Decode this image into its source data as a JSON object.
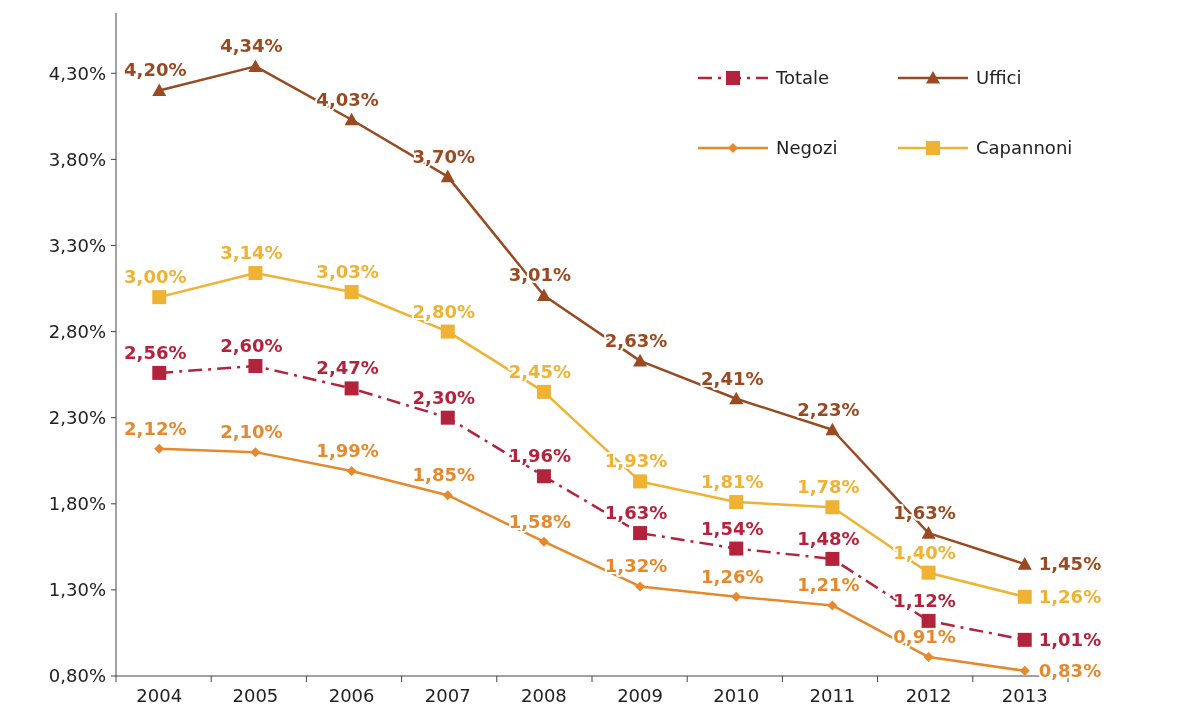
{
  "chart_data": {
    "type": "line",
    "categories": [
      "2004",
      "2005",
      "2006",
      "2007",
      "2008",
      "2009",
      "2010",
      "2011",
      "2012",
      "2013"
    ],
    "ylim": [
      0.8,
      4.65
    ],
    "yticks": [
      {
        "value": 0.8,
        "label": "0,80%"
      },
      {
        "value": 1.3,
        "label": "1,30%"
      },
      {
        "value": 1.8,
        "label": "1,80%"
      },
      {
        "value": 2.3,
        "label": "2,30%"
      },
      {
        "value": 2.8,
        "label": "2,80%"
      },
      {
        "value": 3.3,
        "label": "3,30%"
      },
      {
        "value": 3.8,
        "label": "3,80%"
      },
      {
        "value": 4.3,
        "label": "4,30%"
      }
    ],
    "grid": false,
    "legend": "top right",
    "series": [
      {
        "name": "Totale",
        "color": "#b3243c",
        "marker": "square",
        "line_style": "dashed",
        "values": [
          2.56,
          2.6,
          2.47,
          2.3,
          1.96,
          1.63,
          1.54,
          1.48,
          1.12,
          1.01
        ],
        "value_labels": [
          "2,56%",
          "2,60%",
          "2,47%",
          "2,30%",
          "1,96%",
          "1,63%",
          "1,54%",
          "1,48%",
          "1,12%",
          "1,01%"
        ]
      },
      {
        "name": "Uffici",
        "color": "#9a4a22",
        "marker": "triangle",
        "line_style": "solid",
        "values": [
          4.2,
          4.34,
          4.03,
          3.7,
          3.01,
          2.63,
          2.41,
          2.23,
          1.63,
          1.45
        ],
        "value_labels": [
          "4,20%",
          "4,34%",
          "4,03%",
          "3,70%",
          "3,01%",
          "2,63%",
          "2,41%",
          "2,23%",
          "1,63%",
          "1,45%"
        ]
      },
      {
        "name": "Negozi",
        "color": "#e6892c",
        "marker": "diamond",
        "line_style": "solid",
        "values": [
          2.12,
          2.1,
          1.99,
          1.85,
          1.58,
          1.32,
          1.26,
          1.21,
          0.91,
          0.83
        ],
        "value_labels": [
          "2,12%",
          "2,10%",
          "1,99%",
          "1,85%",
          "1,58%",
          "1,32%",
          "1,26%",
          "1,21%",
          "0,91%",
          "0,83%"
        ]
      },
      {
        "name": "Capannoni",
        "color": "#f0b232",
        "marker": "square",
        "line_style": "solid",
        "values": [
          3.0,
          3.14,
          3.03,
          2.8,
          2.45,
          1.93,
          1.81,
          1.78,
          1.4,
          1.26
        ],
        "value_labels": [
          "3,00%",
          "3,14%",
          "3,03%",
          "2,80%",
          "2,45%",
          "1,93%",
          "1,81%",
          "1,78%",
          "1,40%",
          "1,26%"
        ]
      }
    ]
  }
}
